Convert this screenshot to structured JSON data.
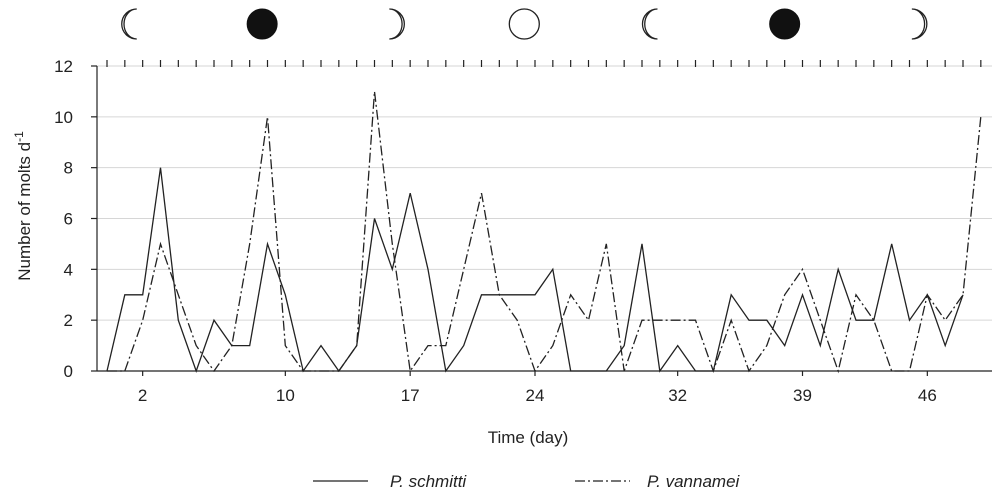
{
  "chart_data": {
    "type": "line",
    "xlabel": "Time (day)",
    "ylabel_main": "Number of molts d",
    "ylabel_sup": "-1",
    "ylim": [
      0,
      12
    ],
    "yticks": [
      "0",
      "2",
      "4",
      "6",
      "8",
      "10",
      "12"
    ],
    "xlim": [
      0,
      48
    ],
    "xtick_labels": [
      {
        "label": "2",
        "x": 2
      },
      {
        "label": "10",
        "x": 10
      },
      {
        "label": "17",
        "x": 17
      },
      {
        "label": "24",
        "x": 24
      },
      {
        "label": "32",
        "x": 32
      },
      {
        "label": "39",
        "x": 39
      },
      {
        "label": "46",
        "x": 46
      }
    ],
    "grid": "horizontal",
    "moon_phases": [
      {
        "x": 1.5,
        "phase": "waning-crescent"
      },
      {
        "x": 8.7,
        "phase": "new-moon"
      },
      {
        "x": 16,
        "phase": "waxing-crescent"
      },
      {
        "x": 23.4,
        "phase": "full-moon"
      },
      {
        "x": 30.7,
        "phase": "waning-crescent"
      },
      {
        "x": 38,
        "phase": "new-moon"
      },
      {
        "x": 45.3,
        "phase": "waxing-crescent"
      }
    ],
    "series": [
      {
        "name": "P. schmitti",
        "style": "solid",
        "x": [
          0,
          1,
          2,
          3,
          4,
          5,
          6,
          7,
          8,
          9,
          10,
          11,
          12,
          13,
          14,
          15,
          16,
          17,
          18,
          19,
          20,
          21,
          22,
          23,
          24,
          25,
          26,
          27,
          28,
          29,
          30,
          31,
          32,
          33,
          34,
          35,
          36,
          37,
          38,
          39,
          40,
          41,
          42,
          43,
          44,
          45,
          46,
          47,
          48
        ],
        "values": [
          0,
          3,
          3,
          8,
          2,
          0,
          2,
          1,
          1,
          5,
          3,
          0,
          1,
          0,
          1,
          6,
          4,
          7,
          4,
          0,
          1,
          3,
          3,
          3,
          3,
          4,
          0,
          0,
          0,
          1,
          5,
          0,
          1,
          0,
          0,
          3,
          2,
          2,
          1,
          3,
          1,
          4,
          2,
          2,
          5,
          2,
          3,
          1,
          3
        ]
      },
      {
        "name": "P. vannamei",
        "style": "dash-dot",
        "x": [
          0,
          1,
          2,
          3,
          4,
          5,
          6,
          7,
          8,
          9,
          10,
          11,
          12,
          13,
          14,
          15,
          16,
          17,
          18,
          19,
          20,
          21,
          22,
          23,
          24,
          25,
          26,
          27,
          28,
          29,
          30,
          31,
          32,
          33,
          34,
          35,
          36,
          37,
          38,
          39,
          40,
          41,
          42,
          43,
          44,
          45,
          46,
          47,
          48,
          49
        ],
        "values": [
          0,
          0,
          2,
          5,
          3,
          1,
          0,
          1,
          5,
          10,
          1,
          0,
          0,
          0,
          1,
          11,
          5,
          0,
          1,
          1,
          4,
          7,
          3,
          2,
          0,
          1,
          3,
          2,
          5,
          0,
          2,
          2,
          2,
          2,
          0,
          2,
          0,
          1,
          3,
          4,
          2,
          0,
          3,
          2,
          0,
          0,
          3,
          2,
          3,
          10
        ]
      }
    ]
  }
}
